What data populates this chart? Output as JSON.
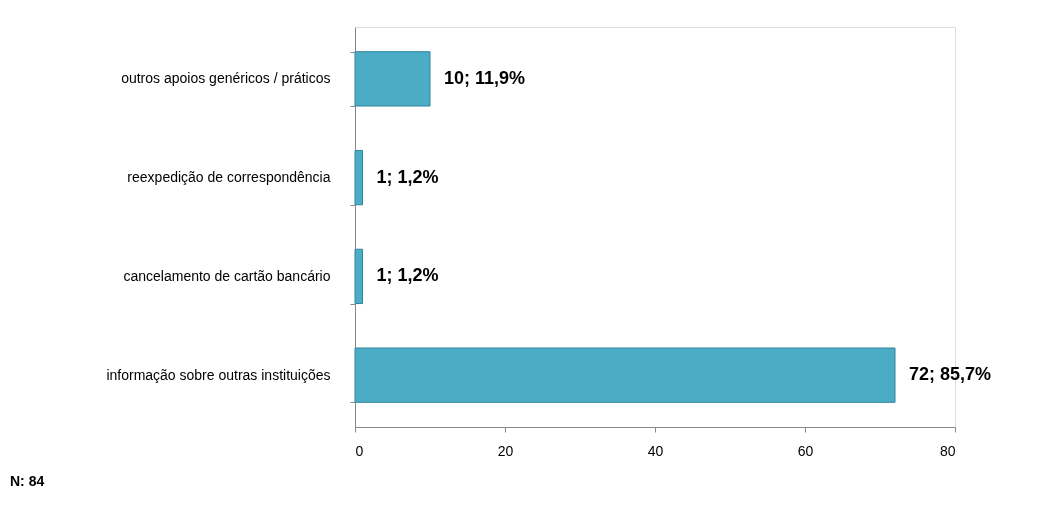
{
  "chart_data": {
    "type": "bar",
    "orientation": "horizontal",
    "categories": [
      "outros apoios genéricos / práticos",
      "reexpedição de correspondência",
      "cancelamento de cartão bancário",
      "informação sobre outras instituições"
    ],
    "values": [
      10,
      1,
      1,
      72
    ],
    "color": "#4bacc6",
    "value_labels": [
      "10; 11,9%",
      "1; 1,2%",
      "1; 1,2%",
      "72; 85,7%"
    ],
    "xlim": [
      0,
      80
    ],
    "xticks": [
      0,
      20,
      40,
      60,
      80
    ],
    "grid": false,
    "annotations": [
      "N: 84"
    ]
  }
}
